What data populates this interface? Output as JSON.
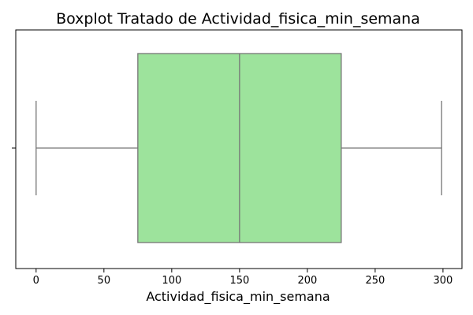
{
  "chart_data": {
    "type": "boxplot",
    "orientation": "horizontal",
    "title": "Boxplot Tratado de Actividad_fisica_min_semana",
    "xlabel": "Actividad_fisica_min_semana",
    "ylabel": "",
    "xlim": [
      -15,
      314
    ],
    "x_ticks": [
      0,
      50,
      100,
      150,
      200,
      250,
      300
    ],
    "x_tick_labels": [
      "0",
      "50",
      "100",
      "150",
      "200",
      "250",
      "300"
    ],
    "grid": false,
    "box": {
      "min": 0,
      "q1": 75,
      "median": 150,
      "q3": 225,
      "max": 299
    },
    "colors": {
      "box_fill": "#9de39c",
      "line": "#767676"
    }
  }
}
